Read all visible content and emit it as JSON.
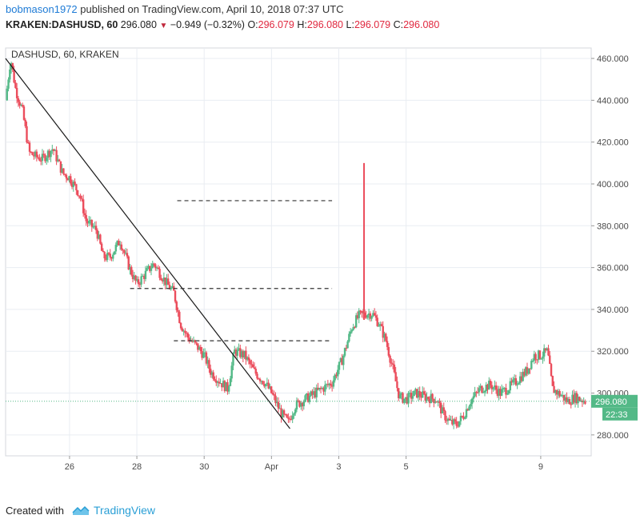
{
  "header": {
    "username": "bobmason1972",
    "published_text": "published on TradingView.com, April 10, 2018 07:37 UTC",
    "symbol": "KRAKEN:DASHUSD, 60",
    "last": "296.080",
    "change": "−0.949 (−0.32%)",
    "o_label": "O:",
    "o_value": "296.079",
    "h_label": "H:",
    "h_value": "296.080",
    "l_label": "L:",
    "l_value": "296.079",
    "c_label": "C:",
    "c_value": "296.080"
  },
  "footer": {
    "created_with": "Created with",
    "brand": "TradingView"
  },
  "colors": {
    "up": "#53b987",
    "down": "#eb4d5c",
    "grid": "#e9edf2",
    "axis_text": "#4a4a4a",
    "price_line": "#53b987",
    "trendline": "#1a1a1a"
  },
  "chart_data": {
    "type": "candlestick",
    "title": "DASHUSD, 60, KRAKEN",
    "xlabel": "",
    "ylabel": "",
    "ylim": [
      270,
      465
    ],
    "y_ticks": [
      "280.000",
      "300.000",
      "320.000",
      "340.000",
      "360.000",
      "380.000",
      "400.000",
      "420.000",
      "440.000",
      "460.000"
    ],
    "x_ticks": [
      "26",
      "28",
      "30",
      "Apr",
      "3",
      "5",
      "9"
    ],
    "x_tick_days": [
      26,
      28,
      30,
      32,
      34,
      36,
      40
    ],
    "x_range_days": [
      24.1,
      41.5
    ],
    "last_price": "296.080",
    "countdown": "22:33",
    "grid": true,
    "trendline": {
      "from": [
        24.1,
        460
      ],
      "to": [
        32.55,
        283
      ]
    },
    "dashed_levels": [
      {
        "price": 392,
        "from_day": 29.2,
        "to_day": 33.8
      },
      {
        "price": 350,
        "from_day": 27.8,
        "to_day": 33.8
      },
      {
        "price": 325,
        "from_day": 29.1,
        "to_day": 33.8
      }
    ],
    "price_path": [
      [
        24.1,
        440
      ],
      [
        24.25,
        460
      ],
      [
        24.4,
        445
      ],
      [
        24.6,
        435
      ],
      [
        24.8,
        415
      ],
      [
        25.0,
        413
      ],
      [
        25.2,
        412
      ],
      [
        25.5,
        417
      ],
      [
        25.8,
        405
      ],
      [
        26.0,
        403
      ],
      [
        26.3,
        395
      ],
      [
        26.5,
        382
      ],
      [
        26.8,
        378
      ],
      [
        27.0,
        365
      ],
      [
        27.2,
        365
      ],
      [
        27.5,
        373
      ],
      [
        27.8,
        359
      ],
      [
        28.0,
        352
      ],
      [
        28.3,
        358
      ],
      [
        28.5,
        362
      ],
      [
        28.7,
        357
      ],
      [
        28.9,
        352
      ],
      [
        29.1,
        348
      ],
      [
        29.3,
        333
      ],
      [
        29.5,
        327
      ],
      [
        29.8,
        322
      ],
      [
        30.0,
        318
      ],
      [
        30.2,
        310
      ],
      [
        30.5,
        305
      ],
      [
        30.7,
        302
      ],
      [
        30.9,
        320
      ],
      [
        31.2,
        318
      ],
      [
        31.5,
        310
      ],
      [
        31.8,
        305
      ],
      [
        32.0,
        300
      ],
      [
        32.3,
        290
      ],
      [
        32.5,
        286
      ],
      [
        32.7,
        294
      ],
      [
        32.9,
        296
      ],
      [
        33.2,
        299
      ],
      [
        33.5,
        302
      ],
      [
        33.8,
        305
      ],
      [
        34.1,
        316
      ],
      [
        34.4,
        332
      ],
      [
        34.6,
        337
      ],
      [
        34.8,
        338
      ],
      [
        35.0,
        338
      ],
      [
        35.2,
        333
      ],
      [
        35.4,
        325
      ],
      [
        35.6,
        312
      ],
      [
        35.8,
        298
      ],
      [
        36.0,
        297
      ],
      [
        36.3,
        300
      ],
      [
        36.6,
        298
      ],
      [
        36.9,
        297
      ],
      [
        37.1,
        290
      ],
      [
        37.3,
        286
      ],
      [
        37.5,
        285
      ],
      [
        37.7,
        289
      ],
      [
        37.9,
        296
      ],
      [
        38.2,
        302
      ],
      [
        38.5,
        304
      ],
      [
        38.8,
        300
      ],
      [
        39.0,
        302
      ],
      [
        39.3,
        306
      ],
      [
        39.6,
        311
      ],
      [
        39.8,
        318
      ],
      [
        40.0,
        318
      ],
      [
        40.2,
        320
      ],
      [
        40.35,
        302
      ],
      [
        40.6,
        299
      ],
      [
        40.8,
        296
      ],
      [
        41.0,
        298
      ],
      [
        41.2,
        297
      ],
      [
        41.35,
        296.08
      ]
    ],
    "spike": {
      "day": 34.75,
      "high": 410,
      "low": 335,
      "open": 336,
      "close": 340
    }
  }
}
